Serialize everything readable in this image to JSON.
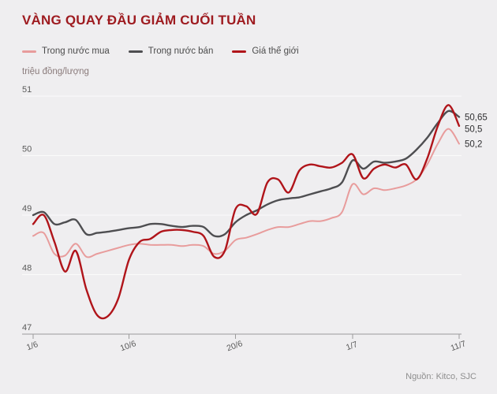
{
  "header": {
    "title": "VÀNG QUAY ĐẦU GIẢM CUỐI TUẦN"
  },
  "footer": {
    "source": "Nguồn: Kitco, SJC"
  },
  "chart_data": {
    "type": "line",
    "title": "VÀNG QUAY ĐẦU GIẢM CUỐI TUẦN",
    "unit_label": "triệu đồng/lượng",
    "ylim": [
      47,
      51
    ],
    "y_ticks": [
      47,
      48,
      49,
      50,
      51
    ],
    "x_domain": [
      0,
      40
    ],
    "x_tick_days": [
      0,
      9,
      19,
      30,
      40
    ],
    "x_tick_labels": [
      "1/6",
      "10/6",
      "20/6",
      "1/7",
      "11/7"
    ],
    "grid_color": "#fbfbfb",
    "axis_color": "#9b9b9b",
    "tick_label_color": "#595959",
    "series": [
      {
        "name": "Trong nước mua",
        "color": "#e89c9c",
        "width": 2,
        "values": [
          48.65,
          48.7,
          48.35,
          48.32,
          48.52,
          48.3,
          48.35,
          48.4,
          48.45,
          48.5,
          48.52,
          48.5,
          48.5,
          48.5,
          48.48,
          48.5,
          48.48,
          48.35,
          48.4,
          48.58,
          48.62,
          48.68,
          48.75,
          48.8,
          48.8,
          48.85,
          48.9,
          48.9,
          48.95,
          49.05,
          49.52,
          49.35,
          49.45,
          49.42,
          49.45,
          49.5,
          49.6,
          49.85,
          50.2,
          50.45,
          50.2
        ]
      },
      {
        "name": "Trong nước bán",
        "color": "#4e4e51",
        "width": 2.4,
        "values": [
          49.0,
          49.05,
          48.85,
          48.88,
          48.92,
          48.68,
          48.7,
          48.72,
          48.75,
          48.78,
          48.8,
          48.85,
          48.85,
          48.82,
          48.8,
          48.82,
          48.8,
          48.65,
          48.68,
          48.88,
          49.0,
          49.08,
          49.18,
          49.25,
          49.28,
          49.3,
          49.35,
          49.4,
          49.45,
          49.55,
          49.92,
          49.78,
          49.9,
          49.88,
          49.9,
          49.95,
          50.1,
          50.3,
          50.55,
          50.75,
          50.65
        ]
      },
      {
        "name": "Giá thế giới",
        "color": "#b0141a",
        "width": 2.4,
        "values": [
          48.85,
          49.0,
          48.55,
          48.05,
          48.4,
          47.75,
          47.32,
          47.3,
          47.6,
          48.25,
          48.55,
          48.6,
          48.72,
          48.75,
          48.75,
          48.72,
          48.65,
          48.3,
          48.4,
          49.1,
          49.15,
          49.02,
          49.55,
          49.6,
          49.38,
          49.75,
          49.85,
          49.82,
          49.8,
          49.88,
          50.02,
          49.62,
          49.78,
          49.85,
          49.8,
          49.85,
          49.6,
          49.95,
          50.5,
          50.85,
          50.5
        ]
      }
    ],
    "end_labels": [
      {
        "text": "50,65",
        "value": 50.65,
        "color": "#2f2f31"
      },
      {
        "text": "50,5",
        "value": 50.5,
        "color": "#2f2f31"
      },
      {
        "text": "50,2",
        "value": 50.2,
        "color": "#2f2f31"
      }
    ]
  }
}
